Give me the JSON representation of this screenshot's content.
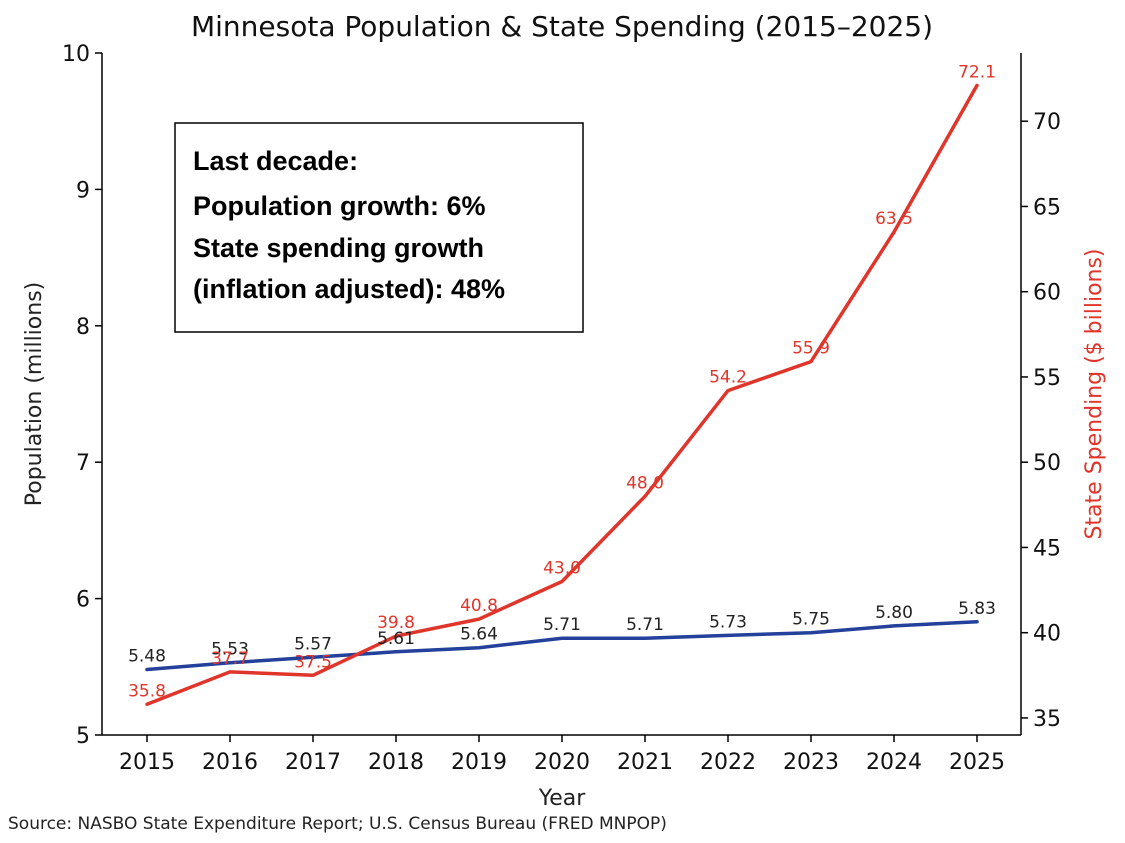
{
  "chart_data": {
    "type": "line",
    "title": "Minnesota Population & State Spending (2015–2025)",
    "xlabel": "Year",
    "ylabel_left": "Population (millions)",
    "ylabel_right": "State Spending ($ billions)",
    "categories": [
      "2015",
      "2016",
      "2017",
      "2018",
      "2019",
      "2020",
      "2021",
      "2022",
      "2023",
      "2024",
      "2025"
    ],
    "ylim_left": [
      5,
      10
    ],
    "ylim_right": [
      34,
      74
    ],
    "yticks_left": [
      "5",
      "6",
      "7",
      "8",
      "9",
      "10"
    ],
    "yticks_right": [
      "35",
      "40",
      "45",
      "50",
      "55",
      "60",
      "65",
      "70"
    ],
    "series": [
      {
        "name": "Population",
        "axis": "left",
        "color": "#23409a",
        "values": [
          5.48,
          5.53,
          5.57,
          5.61,
          5.64,
          5.71,
          5.71,
          5.73,
          5.75,
          5.8,
          5.83
        ],
        "labels": [
          "5.48",
          "5.53",
          "5.57",
          "5.61",
          "5.64",
          "5.71",
          "5.71",
          "5.73",
          "5.75",
          "5.80",
          "5.83"
        ]
      },
      {
        "name": "State Spending",
        "axis": "right",
        "color": "#e0352b",
        "values": [
          35.8,
          37.7,
          37.5,
          39.8,
          40.8,
          43.0,
          48.0,
          54.2,
          55.9,
          63.5,
          72.1
        ],
        "labels": [
          "35.8",
          "37.7",
          "37.5",
          "39.8",
          "40.8",
          "43.0",
          "48.0",
          "54.2",
          "55.9",
          "63.5",
          "72.1"
        ]
      }
    ],
    "annotation": {
      "lines": [
        "Last decade:",
        "Population growth: 6%",
        "State spending growth",
        "(inflation adjusted): 48%"
      ]
    },
    "source": "Source: NASBO State Expenditure Report; U.S. Census Bureau (FRED MNPOP)"
  }
}
